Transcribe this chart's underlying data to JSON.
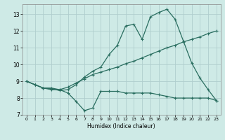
{
  "xlabel": "Humidex (Indice chaleur)",
  "bg_color": "#ceeae6",
  "grid_color": "#b0cece",
  "line_color": "#2a6e60",
  "xlim": [
    -0.5,
    23.5
  ],
  "ylim": [
    7,
    13.6
  ],
  "xticks": [
    0,
    1,
    2,
    3,
    4,
    5,
    6,
    7,
    8,
    9,
    10,
    11,
    12,
    13,
    14,
    15,
    16,
    17,
    18,
    19,
    20,
    21,
    22,
    23
  ],
  "yticks": [
    7,
    8,
    9,
    10,
    11,
    12,
    13
  ],
  "line1_x": [
    0,
    1,
    2,
    3,
    4,
    5,
    6,
    7,
    8,
    9,
    10,
    11,
    12,
    13,
    14,
    15,
    16,
    17,
    18,
    19,
    20,
    21,
    22,
    23
  ],
  "line1_y": [
    9.0,
    8.8,
    8.6,
    8.6,
    8.5,
    8.3,
    7.8,
    7.25,
    7.4,
    8.4,
    8.4,
    8.4,
    8.3,
    8.3,
    8.3,
    8.3,
    8.2,
    8.1,
    8.0,
    8.0,
    8.0,
    8.0,
    8.0,
    7.85
  ],
  "line2_x": [
    0,
    1,
    2,
    3,
    4,
    5,
    6,
    7,
    8,
    9,
    10,
    11,
    12,
    13,
    14,
    15,
    16,
    17,
    18,
    19,
    20,
    21,
    22,
    23
  ],
  "line2_y": [
    9.0,
    8.8,
    8.6,
    8.5,
    8.5,
    8.65,
    8.9,
    9.15,
    9.4,
    9.55,
    9.7,
    9.85,
    10.05,
    10.2,
    10.4,
    10.6,
    10.8,
    11.0,
    11.15,
    11.35,
    11.5,
    11.65,
    11.85,
    12.0
  ],
  "line3_x": [
    0,
    1,
    2,
    3,
    4,
    5,
    6,
    7,
    8,
    9,
    10,
    11,
    12,
    13,
    14,
    15,
    16,
    17,
    18,
    19,
    20,
    21,
    22,
    23
  ],
  "line3_y": [
    9.0,
    8.8,
    8.6,
    8.55,
    8.45,
    8.5,
    8.8,
    9.25,
    9.6,
    9.85,
    10.6,
    11.15,
    12.3,
    12.4,
    11.5,
    12.85,
    13.1,
    13.3,
    12.7,
    11.4,
    10.1,
    9.2,
    8.5,
    7.85
  ]
}
